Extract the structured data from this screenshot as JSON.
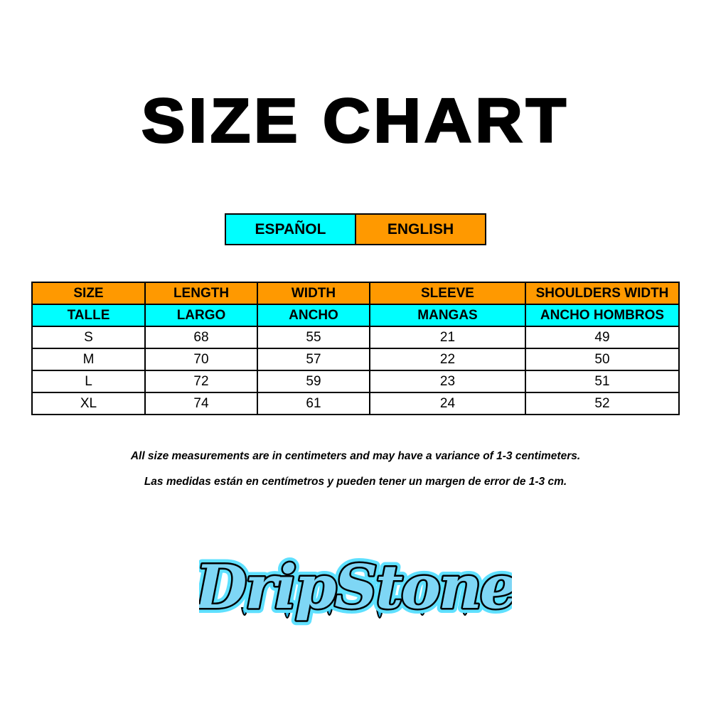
{
  "title": "SIZE CHART",
  "language_toggle": {
    "spanish": "ESPAÑOL",
    "english": "ENGLISH"
  },
  "colors": {
    "orange": "#ff9900",
    "cyan": "#00ffff",
    "logo_blue": "#29b6e8"
  },
  "table": {
    "header_en": [
      "SIZE",
      "LENGTH",
      "WIDTH",
      "SLEEVE",
      "SHOULDERS WIDTH"
    ],
    "header_es": [
      "TALLE",
      "LARGO",
      "ANCHO",
      "MANGAS",
      "ANCHO HOMBROS"
    ],
    "rows": [
      [
        "S",
        "68",
        "55",
        "21",
        "49"
      ],
      [
        "M",
        "70",
        "57",
        "22",
        "50"
      ],
      [
        "L",
        "72",
        "59",
        "23",
        "51"
      ],
      [
        "XL",
        "74",
        "61",
        "24",
        "52"
      ]
    ]
  },
  "notes": {
    "english": "All size measurements are in centimeters and may have a variance of 1-3 centimeters.",
    "spanish": "Las medidas están en centímetros y pueden tener un margen de error de 1-3 cm."
  },
  "logo": {
    "text": "DripStone"
  }
}
